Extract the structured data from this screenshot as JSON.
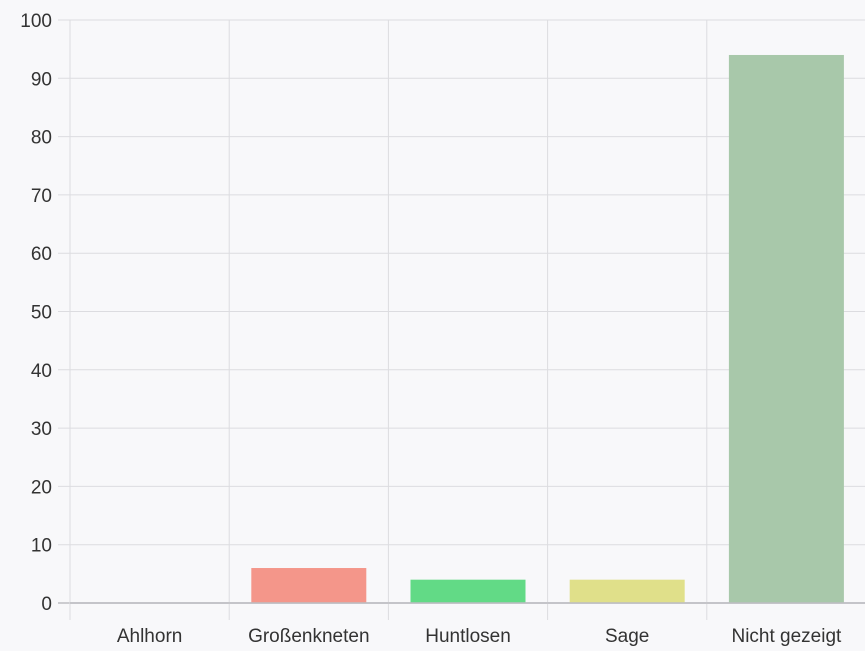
{
  "chart_data": {
    "type": "bar",
    "categories": [
      "Ahlhorn",
      "Großenkneten",
      "Huntlosen",
      "Sage",
      "Nicht gezeigt"
    ],
    "values": [
      0,
      6,
      4,
      4,
      94
    ],
    "colors": [
      "#f4a090",
      "#f4968a",
      "#62da86",
      "#e0e08a",
      "#a8c8aa"
    ],
    "ylim": [
      0,
      100
    ],
    "yticks": [
      0,
      10,
      20,
      30,
      40,
      50,
      60,
      70,
      80,
      90,
      100
    ],
    "grid": true,
    "legend": "none",
    "title": "",
    "xlabel": "",
    "ylabel": ""
  }
}
